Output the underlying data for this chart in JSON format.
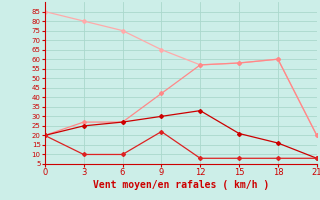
{
  "x_ticks": [
    0,
    3,
    6,
    9,
    12,
    15,
    18,
    21
  ],
  "line1": {
    "x": [
      0,
      3,
      6,
      9,
      12,
      15,
      18,
      21
    ],
    "y": [
      85,
      80,
      75,
      65,
      57,
      58,
      60,
      20
    ],
    "color": "#ffaaaa",
    "marker": "D",
    "markersize": 2,
    "linewidth": 0.9
  },
  "line2": {
    "x": [
      0,
      3,
      6,
      9,
      12,
      15,
      18,
      21
    ],
    "y": [
      20,
      27,
      27,
      42,
      57,
      58,
      60,
      20
    ],
    "color": "#ff8888",
    "marker": "D",
    "markersize": 2,
    "linewidth": 0.9
  },
  "line3": {
    "x": [
      0,
      3,
      6,
      9,
      12,
      15,
      18,
      21
    ],
    "y": [
      20,
      25,
      27,
      30,
      33,
      21,
      16,
      8
    ],
    "color": "#cc0000",
    "marker": "D",
    "markersize": 2,
    "linewidth": 0.9
  },
  "line4": {
    "x": [
      0,
      3,
      6,
      9,
      12,
      15,
      18,
      21
    ],
    "y": [
      20,
      10,
      10,
      22,
      8,
      8,
      8,
      8
    ],
    "color": "#dd2222",
    "marker": "D",
    "markersize": 2,
    "linewidth": 0.9
  },
  "xlabel": "Vent moyen/en rafales ( km/h )",
  "xlim": [
    0,
    21
  ],
  "ylim": [
    5,
    90
  ],
  "yticks": [
    5,
    10,
    15,
    20,
    25,
    30,
    35,
    40,
    45,
    50,
    55,
    60,
    65,
    70,
    75,
    80,
    85
  ],
  "bg_color": "#cceee8",
  "grid_color": "#aad8cc",
  "axis_color": "#cc0000",
  "xlabel_color": "#cc0000",
  "xlabel_fontsize": 7,
  "ytick_fontsize": 5,
  "xtick_fontsize": 6
}
